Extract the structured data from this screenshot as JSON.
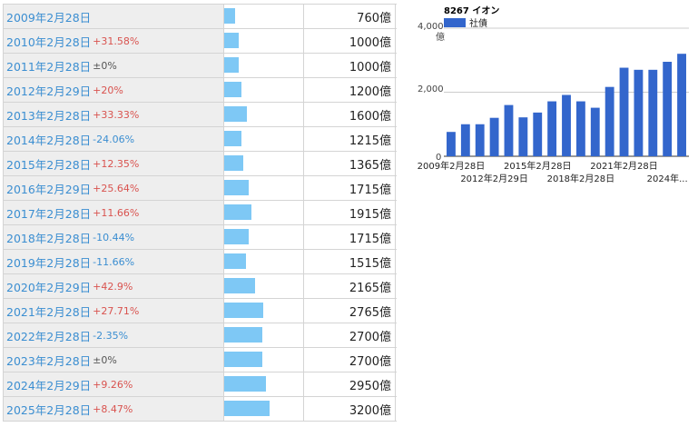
{
  "table": {
    "unit": "億",
    "rows": [
      {
        "date": "2009年2月28日",
        "change": "",
        "value": 760
      },
      {
        "date": "2010年2月28日",
        "change": "+31.58%",
        "value": 1000
      },
      {
        "date": "2011年2月28日",
        "change": "±0%",
        "value": 1000
      },
      {
        "date": "2012年2月29日",
        "change": "+20%",
        "value": 1200
      },
      {
        "date": "2013年2月28日",
        "change": "+33.33%",
        "value": 1600
      },
      {
        "date": "2014年2月28日",
        "change": "-24.06%",
        "value": 1215
      },
      {
        "date": "2015年2月28日",
        "change": "+12.35%",
        "value": 1365
      },
      {
        "date": "2016年2月29日",
        "change": "+25.64%",
        "value": 1715
      },
      {
        "date": "2017年2月28日",
        "change": "+11.66%",
        "value": 1915
      },
      {
        "date": "2018年2月28日",
        "change": "-10.44%",
        "value": 1715
      },
      {
        "date": "2019年2月28日",
        "change": "-11.66%",
        "value": 1515
      },
      {
        "date": "2020年2月29日",
        "change": "+42.9%",
        "value": 2165
      },
      {
        "date": "2021年2月28日",
        "change": "+27.71%",
        "value": 2765
      },
      {
        "date": "2022年2月28日",
        "change": "-2.35%",
        "value": 2700
      },
      {
        "date": "2023年2月28日",
        "change": "±0%",
        "value": 2700
      },
      {
        "date": "2024年2月29日",
        "change": "+9.26%",
        "value": 2950
      },
      {
        "date": "2025年2月28日",
        "change": "+8.47%",
        "value": 3200
      }
    ]
  },
  "colors": {
    "bar_table": "#7ec8f5",
    "bar_chart": "#3366cc",
    "positive": "#d9534f",
    "negative": "#3b8ed1"
  },
  "chart_data": {
    "type": "bar",
    "title": "8267 イオン",
    "legend": "社債",
    "legend_position": "top-left",
    "ylim": [
      0,
      4000
    ],
    "yticks": [
      "4,000億",
      "2,000",
      "0"
    ],
    "ytick_values": [
      4000,
      2000,
      0
    ],
    "grid": true,
    "categories": [
      "2009年2月28日",
      "2010年2月28日",
      "2011年2月28日",
      "2012年2月29日",
      "2013年2月28日",
      "2014年2月28日",
      "2015年2月28日",
      "2016年2月29日",
      "2017年2月28日",
      "2018年2月28日",
      "2019年2月28日",
      "2020年2月29日",
      "2021年2月28日",
      "2022年2月28日",
      "2023年2月28日",
      "2024年2月29日",
      "2025年2月28日"
    ],
    "values": [
      760,
      1000,
      1000,
      1200,
      1600,
      1215,
      1365,
      1715,
      1915,
      1715,
      1515,
      2165,
      2765,
      2700,
      2700,
      2950,
      3200
    ],
    "xtick_labels": [
      "2009年2月28日",
      "2012年2月29日",
      "2015年2月28日",
      "2018年2月28日",
      "2021年2月28日",
      "2024年..."
    ],
    "xtick_categories": [
      0,
      3,
      6,
      9,
      12,
      15
    ]
  }
}
